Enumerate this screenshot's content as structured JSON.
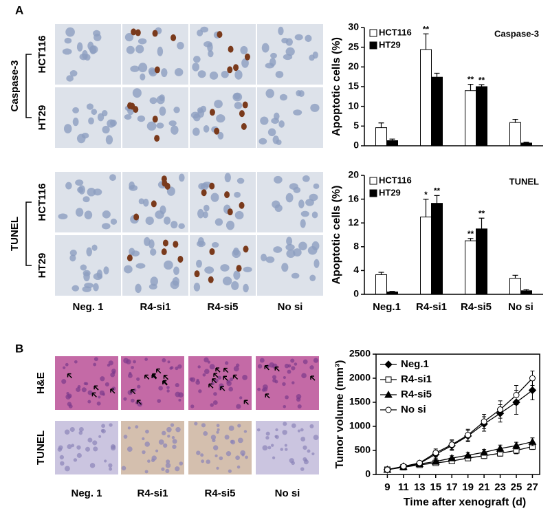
{
  "panels": {
    "A": "A",
    "B": "B"
  },
  "micrographs_a": {
    "groups": [
      {
        "label": "Caspase-3",
        "rows": [
          "HCT116",
          "HT29"
        ]
      },
      {
        "label": "TUNEL",
        "rows": [
          "HCT116",
          "HT29"
        ]
      }
    ],
    "columns": [
      "Neg. 1",
      "R4-si1",
      "R4-si5",
      "No si"
    ]
  },
  "micrographs_b": {
    "rows": [
      "H&E",
      "TUNEL"
    ],
    "columns": [
      "Neg. 1",
      "R4-si1",
      "R4-si5",
      "No si"
    ]
  },
  "chart_data": [
    {
      "type": "bar",
      "title": "Caspase-3",
      "y_label": "Apoptotic cells (%)",
      "categories": [
        null,
        null,
        null,
        null
      ],
      "ylim": [
        0,
        30
      ],
      "yticks": [
        0,
        5,
        10,
        15,
        20,
        25,
        30
      ],
      "legend": "upper left",
      "series": [
        {
          "name": "HCT116",
          "color": "#ffffff",
          "values": [
            4.6,
            24.4,
            14,
            5.9
          ],
          "errors": [
            1.2,
            4,
            1.6,
            0.8
          ],
          "significance": [
            null,
            "**",
            "**",
            null
          ]
        },
        {
          "name": "HT29",
          "color": "#000000",
          "values": [
            1.3,
            17.4,
            15,
            0.7
          ],
          "errors": [
            0.4,
            1,
            0.5,
            0.2
          ],
          "significance": [
            null,
            null,
            "**",
            null
          ]
        }
      ]
    },
    {
      "type": "bar",
      "title": "TUNEL",
      "y_label": "Apoptotic cells (%)",
      "categories": [
        "Neg.1",
        "R4-si1",
        "R4-si5",
        "No si"
      ],
      "ylim": [
        0,
        20
      ],
      "yticks": [
        0,
        4,
        8,
        12,
        16,
        20
      ],
      "legend": "upper left",
      "series": [
        {
          "name": "HCT116",
          "color": "#ffffff",
          "values": [
            3.3,
            13,
            9,
            2.7
          ],
          "errors": [
            0.4,
            3,
            0.4,
            0.5
          ],
          "significance": [
            null,
            "*",
            "**",
            null
          ]
        },
        {
          "name": "HT29",
          "color": "#000000",
          "values": [
            0.4,
            15.3,
            11,
            0.6
          ],
          "errors": [
            0.1,
            1.3,
            1.8,
            0.2
          ],
          "significance": [
            null,
            "**",
            "**",
            null
          ]
        }
      ]
    },
    {
      "type": "line",
      "x_label": "Time after xenograft (d)",
      "y_label": "Tumor volume (mm³)",
      "x": [
        9,
        11,
        13,
        15,
        17,
        19,
        21,
        23,
        25,
        27
      ],
      "xlim": [
        7.6,
        27.9
      ],
      "xticks": [
        9,
        11,
        13,
        15,
        17,
        19,
        21,
        23,
        25,
        27
      ],
      "ylim": [
        0,
        2500
      ],
      "yticks": [
        0,
        500,
        1000,
        1500,
        2000,
        2500
      ],
      "legend": "upper left",
      "series": [
        {
          "name": "Neg.1",
          "color": "#000000",
          "marker": "diamond",
          "fill": "#000000",
          "values": [
            100,
            170,
            230,
            420,
            600,
            800,
            1050,
            1270,
            1500,
            1750
          ],
          "errors": [
            20,
            30,
            40,
            80,
            100,
            120,
            150,
            180,
            250,
            200
          ]
        },
        {
          "name": "R4-si1",
          "color": "#000000",
          "marker": "square",
          "fill": "#ffffff",
          "values": [
            100,
            150,
            200,
            240,
            280,
            340,
            390,
            440,
            500,
            580
          ],
          "errors": [
            15,
            20,
            30,
            40,
            40,
            50,
            60,
            60,
            70,
            60
          ]
        },
        {
          "name": "R4-si5",
          "color": "#000000",
          "marker": "triangle",
          "fill": "#000000",
          "values": [
            100,
            160,
            220,
            270,
            340,
            400,
            460,
            540,
            600,
            680
          ],
          "errors": [
            15,
            20,
            30,
            40,
            50,
            60,
            60,
            70,
            70,
            80
          ]
        },
        {
          "name": "No si",
          "color": "#000000",
          "marker": "circle",
          "fill": "#ffffff",
          "values": [
            100,
            170,
            240,
            450,
            620,
            820,
            1100,
            1350,
            1650,
            2000
          ],
          "errors": [
            20,
            30,
            40,
            80,
            100,
            120,
            150,
            180,
            200,
            150
          ]
        }
      ]
    }
  ]
}
